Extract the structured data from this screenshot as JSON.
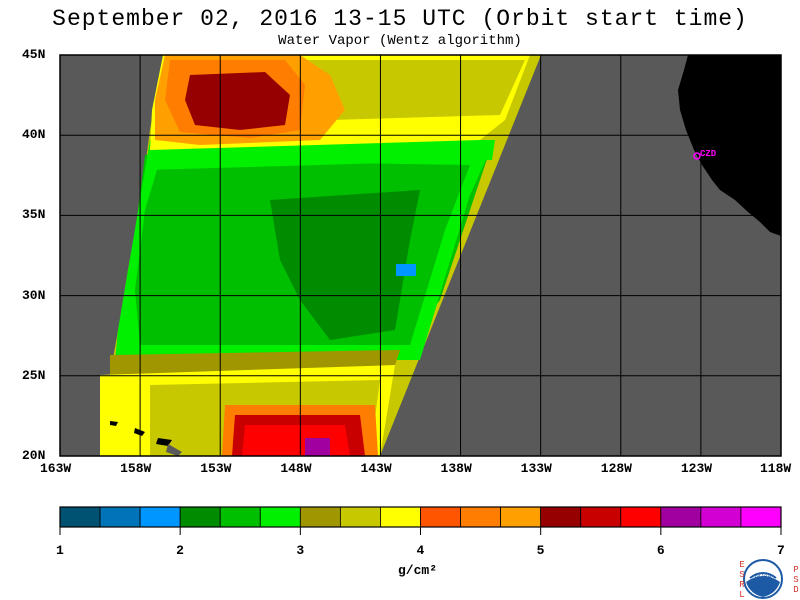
{
  "title": "September 02, 2016  13-15 UTC  (Orbit start time)",
  "subtitle": "Water Vapor (Wentz algorithm)",
  "map": {
    "lat_range": [
      20,
      45
    ],
    "lon_range": [
      -163,
      -118
    ],
    "lat_ticks": [
      "45N",
      "40N",
      "35N",
      "30N",
      "25N",
      "20N"
    ],
    "lat_values": [
      45,
      40,
      35,
      30,
      25,
      20
    ],
    "lon_ticks": [
      "163W",
      "158W",
      "153W",
      "148W",
      "143W",
      "138W",
      "133W",
      "128W",
      "123W",
      "118W"
    ],
    "lon_values": [
      -163,
      -158,
      -153,
      -148,
      -143,
      -138,
      -133,
      -128,
      -123,
      -118
    ],
    "station_label": "CZD",
    "colors": {
      "background_gray": "#595959",
      "land": "#000000",
      "grid": "#000000",
      "station": "#ff00ff"
    }
  },
  "colorbar": {
    "unit": "g/cm²",
    "tick_labels": [
      "1",
      "2",
      "3",
      "4",
      "5",
      "6",
      "7"
    ],
    "colors": [
      "#005273",
      "#0073b9",
      "#0096ff",
      "#008c00",
      "#00be00",
      "#00f000",
      "#a09600",
      "#c8c800",
      "#ffff00",
      "#ff5500",
      "#ff7d00",
      "#ffa000",
      "#960000",
      "#c80000",
      "#ff0000",
      "#a000a0",
      "#d200d2",
      "#ff00ff"
    ]
  },
  "logo": {
    "left_letters": "ESRL",
    "right_letters": "PSD",
    "center": "NOAA"
  }
}
